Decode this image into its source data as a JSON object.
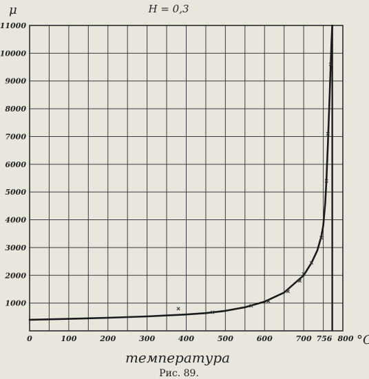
{
  "chart_data": {
    "type": "line",
    "title": "H = 0,3",
    "ylabel": "μ",
    "xlabel": "температура",
    "x_unit": "°C",
    "caption": "Рис. 89.",
    "xlim": [
      0,
      800
    ],
    "ylim": [
      0,
      11000
    ],
    "x_ticks": [
      {
        "value": 0,
        "label": "0"
      },
      {
        "value": 100,
        "label": "100"
      },
      {
        "value": 200,
        "label": "200"
      },
      {
        "value": 300,
        "label": "300"
      },
      {
        "value": 400,
        "label": "400"
      },
      {
        "value": 500,
        "label": "500"
      },
      {
        "value": 600,
        "label": "600"
      },
      {
        "value": 700,
        "label": "700"
      },
      {
        "value": 756,
        "label": "756"
      },
      {
        "value": 800,
        "label": "800"
      }
    ],
    "y_ticks": [
      {
        "value": 1000,
        "label": "1000"
      },
      {
        "value": 2000,
        "label": "2000"
      },
      {
        "value": 3000,
        "label": "3000"
      },
      {
        "value": 4000,
        "label": "4000"
      },
      {
        "value": 5000,
        "label": "5000"
      },
      {
        "value": 6000,
        "label": "6000"
      },
      {
        "value": 7000,
        "label": "7000"
      },
      {
        "value": 8000,
        "label": "8000"
      },
      {
        "value": 9000,
        "label": "9000"
      },
      {
        "value": 10000,
        "label": "10000"
      },
      {
        "value": 11000,
        "label": "11000"
      }
    ],
    "vertical_line_at": 773,
    "grid": true,
    "series": [
      {
        "x": [
          0,
          100,
          200,
          300,
          400,
          450,
          500,
          550,
          600,
          650,
          700,
          720,
          735,
          745,
          750,
          755,
          758,
          762,
          766,
          769,
          771,
          773
        ],
        "y": [
          400,
          430,
          470,
          520,
          590,
          640,
          720,
          850,
          1050,
          1380,
          2000,
          2450,
          2900,
          3400,
          3800,
          4600,
          5400,
          6800,
          8400,
          9600,
          10400,
          11000
        ]
      }
    ],
    "markers": [
      {
        "x": 380,
        "y": 800
      },
      {
        "x": 467,
        "y": 670
      },
      {
        "x": 566,
        "y": 900
      },
      {
        "x": 610,
        "y": 1070
      },
      {
        "x": 660,
        "y": 1420
      },
      {
        "x": 690,
        "y": 1800
      },
      {
        "x": 700,
        "y": 2050
      },
      {
        "x": 720,
        "y": 2450
      },
      {
        "x": 745,
        "y": 3350
      },
      {
        "x": 758,
        "y": 5400
      },
      {
        "x": 762,
        "y": 7100
      },
      {
        "x": 769,
        "y": 9600
      }
    ]
  }
}
